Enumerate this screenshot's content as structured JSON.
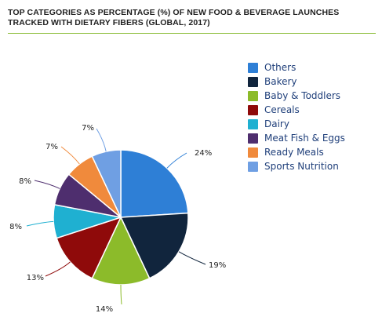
{
  "header": {
    "title": "TOP CATEGORIES AS PERCENTAGE (%) OF NEW FOOD & BEVERAGE LAUNCHES TRACKED WITH DIETARY FIBERS (GLOBAL, 2017)"
  },
  "chart_data": {
    "type": "pie",
    "title": "TOP CATEGORIES AS PERCENTAGE (%) OF NEW FOOD & BEVERAGE LAUNCHES TRACKED WITH DIETARY FIBERS (GLOBAL, 2017)",
    "legend_position": "right",
    "slices": [
      {
        "label": "Others",
        "value": 24,
        "display": "24%",
        "color": "#2e7fd6"
      },
      {
        "label": "Bakery",
        "value": 19,
        "display": "19%",
        "color": "#11253d"
      },
      {
        "label": "Baby & Toddlers",
        "value": 14,
        "display": "14%",
        "color": "#8cbb2a"
      },
      {
        "label": "Cereals",
        "value": 13,
        "display": "13%",
        "color": "#8f0a0a"
      },
      {
        "label": "Dairy",
        "value": 8,
        "display": "8%",
        "color": "#1fb0d1"
      },
      {
        "label": "Meat Fish & Eggs",
        "value": 8,
        "display": "8%",
        "color": "#4e2e6e"
      },
      {
        "label": "Ready Meals",
        "value": 7,
        "display": "7%",
        "color": "#f08a3c"
      },
      {
        "label": "Sports Nutrition",
        "value": 7,
        "display": "7%",
        "color": "#6f9fe3"
      }
    ]
  }
}
